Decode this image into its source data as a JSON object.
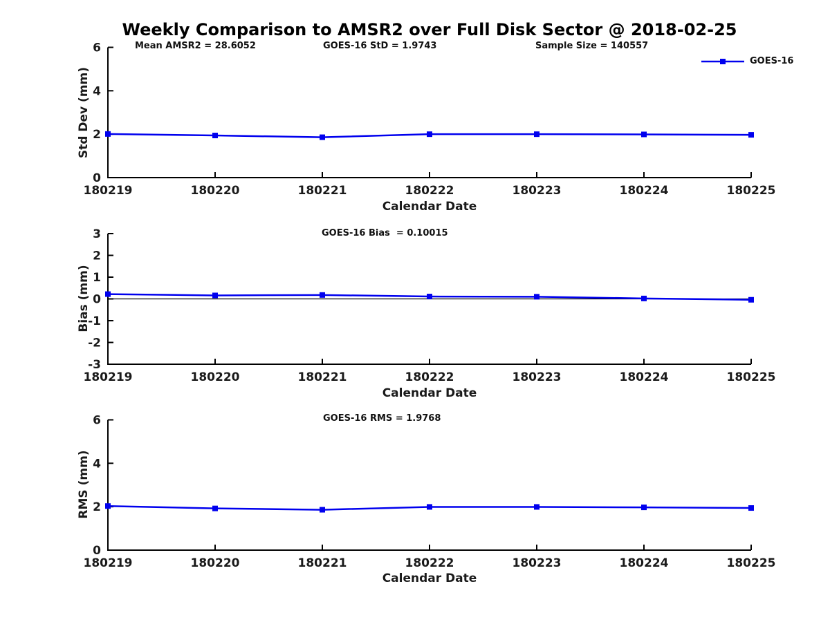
{
  "figure": {
    "title": "Weekly Comparison to AMSR2 over Full Disk Sector @ 2018-02-25",
    "accent_color": "#0000ee",
    "axis_color": "#000000",
    "label_color": "#1a1a1a"
  },
  "legend": {
    "label": "GOES-16"
  },
  "chart_data": [
    {
      "type": "line",
      "categories": [
        "180219",
        "180220",
        "180221",
        "180222",
        "180223",
        "180224",
        "180225"
      ],
      "series": [
        {
          "name": "GOES-16",
          "values": [
            2.01,
            1.94,
            1.86,
            2.0,
            2.0,
            1.99,
            1.97
          ]
        }
      ],
      "title": "",
      "xlabel": "Calendar Date",
      "ylabel": "Std Dev (mm)",
      "ylim": [
        0,
        6
      ],
      "yticks": [
        0,
        2,
        4,
        6
      ],
      "grid": false,
      "legend_position": "top-right-outside",
      "annotations": [
        "Mean AMSR2 = 28.6052",
        "GOES-16 StD = 1.9743",
        "Sample Size = 140557"
      ]
    },
    {
      "type": "line",
      "categories": [
        "180219",
        "180220",
        "180221",
        "180222",
        "180223",
        "180224",
        "180225"
      ],
      "series": [
        {
          "name": "GOES-16",
          "values": [
            0.22,
            0.16,
            0.18,
            0.11,
            0.1,
            0.02,
            -0.04
          ]
        }
      ],
      "title": "",
      "xlabel": "Calendar Date",
      "ylabel": "Bias (mm)",
      "ylim": [
        -3,
        3
      ],
      "yticks": [
        -3,
        -2,
        -1,
        0,
        1,
        2,
        3
      ],
      "zero_line": true,
      "grid": false,
      "annotations": [
        "GOES-16 Bias  = 0.10015"
      ]
    },
    {
      "type": "line",
      "categories": [
        "180219",
        "180220",
        "180221",
        "180222",
        "180223",
        "180224",
        "180225"
      ],
      "series": [
        {
          "name": "GOES-16",
          "values": [
            2.03,
            1.92,
            1.86,
            1.99,
            1.99,
            1.97,
            1.94
          ]
        }
      ],
      "title": "",
      "xlabel": "Calendar Date",
      "ylabel": "RMS (mm)",
      "ylim": [
        0,
        6
      ],
      "yticks": [
        0,
        2,
        4,
        6
      ],
      "grid": false,
      "annotations": [
        "GOES-16 RMS = 1.9768"
      ]
    }
  ]
}
